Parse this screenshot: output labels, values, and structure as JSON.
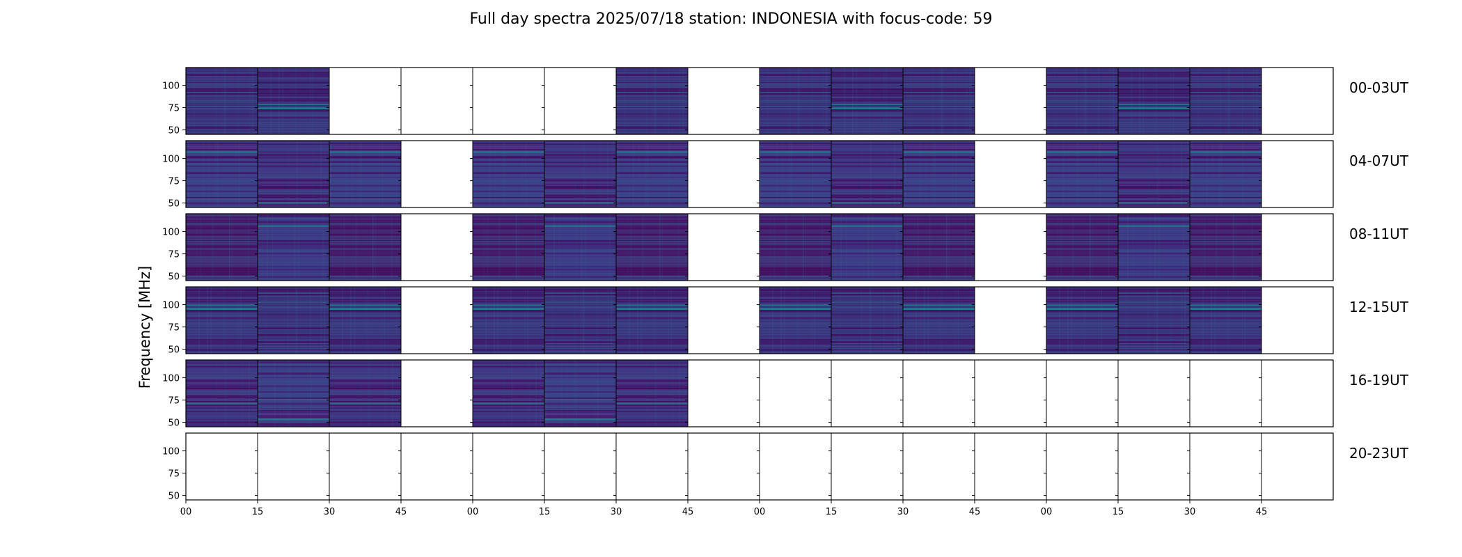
{
  "chart_data": {
    "type": "heatmap",
    "title": "Full day spectra 2025/07/18 station: INDONESIA with focus-code: 59",
    "ylabel": "Frequency [MHz]",
    "xlabel": "",
    "y_ticks": [
      "100",
      "75",
      "50"
    ],
    "y_tick_values": [
      100,
      75,
      50
    ],
    "ylim": [
      45,
      120
    ],
    "x_ticks": [
      "00",
      "15",
      "30",
      "45",
      "00",
      "15",
      "30",
      "45",
      "00",
      "15",
      "30",
      "45",
      "00",
      "15",
      "30",
      "45"
    ],
    "panels_per_row": 16,
    "colormap": "viridis",
    "colors": {
      "low": "#440154",
      "mid": "#3b528b",
      "high": "#21918c",
      "peak": "#5ec962"
    },
    "rows": [
      {
        "label": "00-03UT",
        "present": [
          1,
          1,
          0,
          0,
          0,
          0,
          1,
          0,
          1,
          1,
          1,
          0,
          1,
          1,
          1,
          0
        ]
      },
      {
        "label": "04-07UT",
        "present": [
          1,
          1,
          1,
          0,
          1,
          1,
          1,
          0,
          1,
          1,
          1,
          0,
          1,
          1,
          1,
          0
        ]
      },
      {
        "label": "08-11UT",
        "present": [
          1,
          1,
          1,
          0,
          1,
          1,
          1,
          0,
          1,
          1,
          1,
          0,
          1,
          1,
          1,
          0
        ]
      },
      {
        "label": "12-15UT",
        "present": [
          1,
          1,
          1,
          0,
          1,
          1,
          1,
          0,
          1,
          1,
          1,
          0,
          1,
          1,
          1,
          0
        ]
      },
      {
        "label": "16-19UT",
        "present": [
          1,
          1,
          1,
          0,
          1,
          1,
          1,
          0,
          0,
          0,
          0,
          0,
          0,
          0,
          0,
          0
        ]
      },
      {
        "label": "20-23UT",
        "present": [
          0,
          0,
          0,
          0,
          0,
          0,
          0,
          0,
          0,
          0,
          0,
          0,
          0,
          0,
          0,
          0
        ]
      }
    ]
  }
}
